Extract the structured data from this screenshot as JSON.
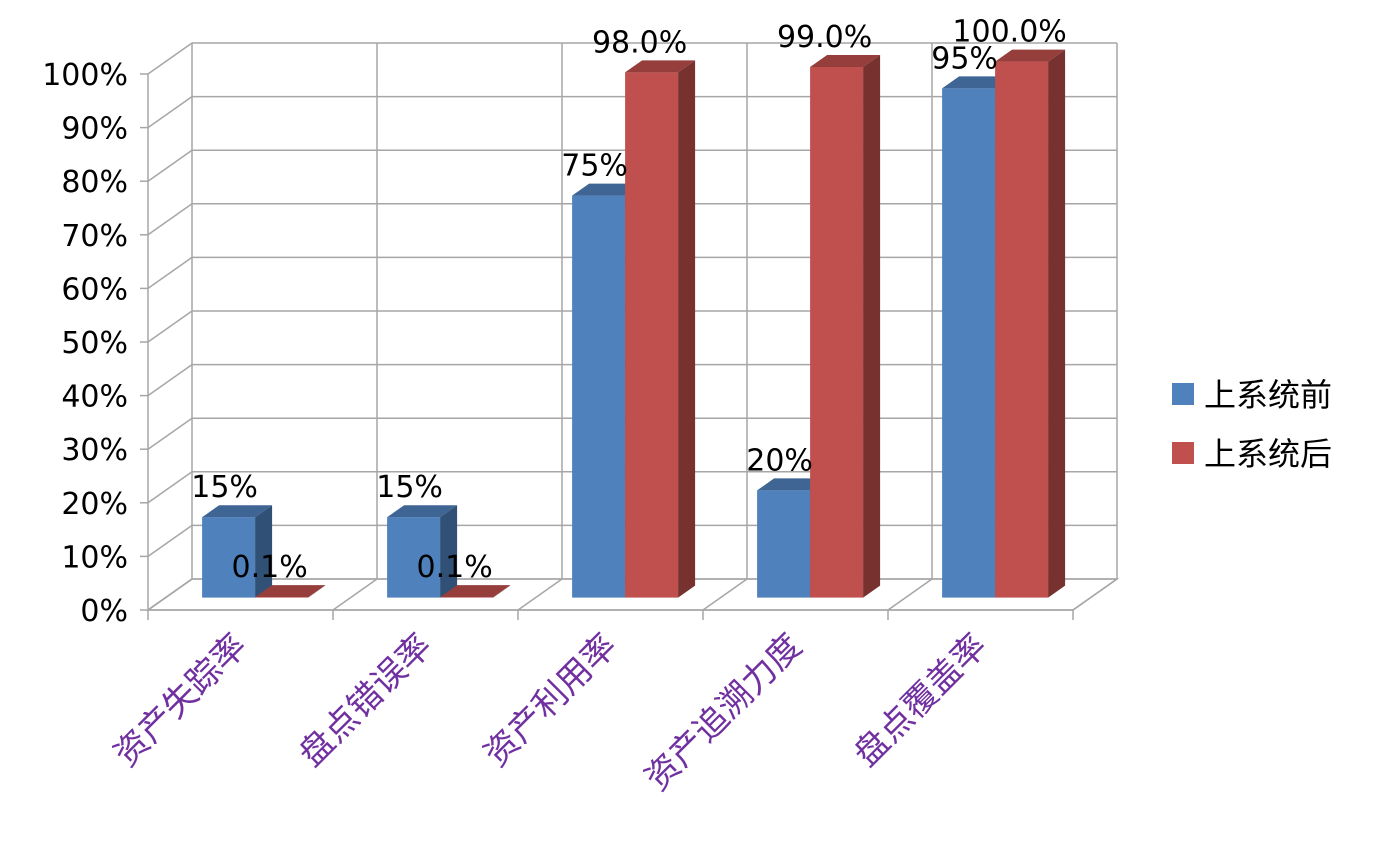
{
  "chart_data": {
    "type": "bar",
    "style": "3d-clustered-column",
    "categories": [
      "资产失踪率",
      "盘点错误率",
      "资产利用率",
      "资产追溯力度",
      "盘点覆盖率"
    ],
    "series": [
      {
        "name": "上系统前",
        "values": [
          15,
          15,
          75,
          20,
          95
        ],
        "labels": [
          "15%",
          "15%",
          "75%",
          "20%",
          "95%"
        ],
        "color": "#4f81bd"
      },
      {
        "name": "上系统后",
        "values": [
          0.1,
          0.1,
          98,
          99,
          100
        ],
        "labels": [
          "0.1%",
          "0.1%",
          "98.0%",
          "99.0%",
          "100.0%"
        ],
        "color": "#c0504d"
      }
    ],
    "y_ticks": [
      "0%",
      "10%",
      "20%",
      "30%",
      "40%",
      "50%",
      "60%",
      "70%",
      "80%",
      "90%",
      "100%"
    ],
    "ylim": [
      0,
      100
    ],
    "grid": true,
    "legend_position": "right",
    "category_label_color": "#7030a0"
  }
}
